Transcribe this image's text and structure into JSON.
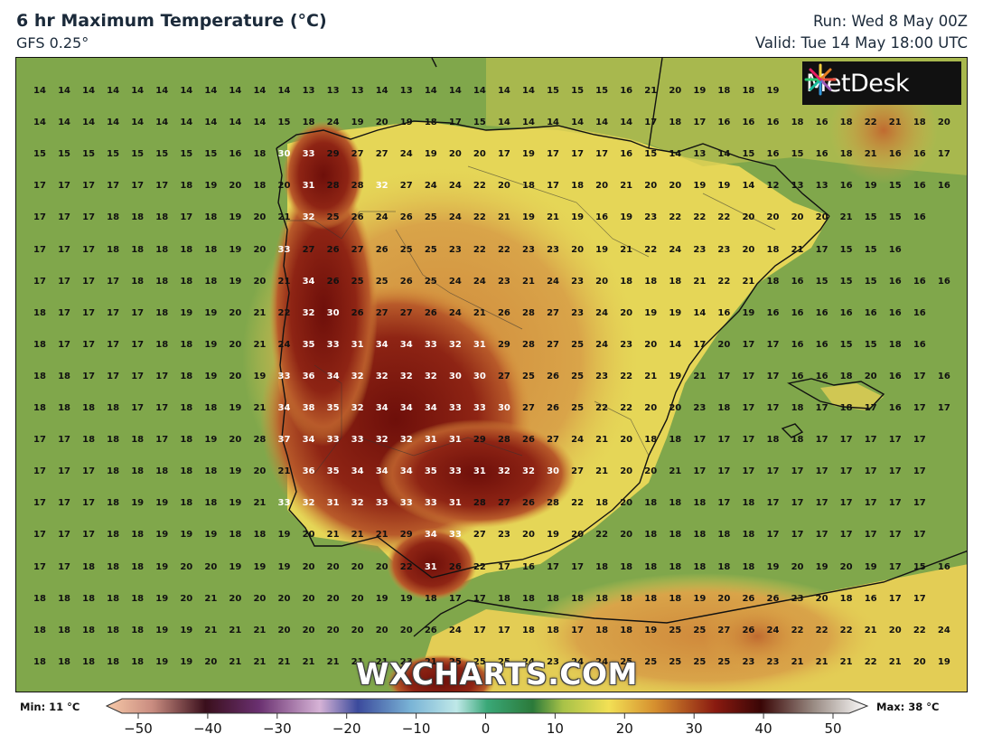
{
  "header": {
    "title": "6 hr Maximum Temperature (°C)",
    "model": "GFS 0.25°",
    "run": "Run: Wed 8 May 00Z",
    "valid": "Valid: Tue 14 May 18:00 UTC"
  },
  "logo": {
    "text": "MetDesk",
    "icon": "metdesk-starburst-icon"
  },
  "watermark": "WXCHARTS.COM",
  "legend": {
    "min_label": "Min: 11 °C",
    "max_label": "Max: 38 °C",
    "ticks": [
      "−50",
      "−40",
      "−30",
      "−20",
      "−10",
      "0",
      "10",
      "20",
      "30",
      "40",
      "50"
    ],
    "tick_values": [
      -50,
      -40,
      -30,
      -20,
      -10,
      0,
      10,
      20,
      30,
      40,
      50
    ]
  },
  "colors": {
    "sea_green": "#7da64a",
    "warm_yellow": "#e6d655",
    "orange": "#d68a3a",
    "hot_red": "#8a1a10",
    "coastline": "#111111"
  },
  "grid": {
    "hot_threshold": 30,
    "rows": [
      [
        14,
        14,
        14,
        14,
        14,
        14,
        14,
        14,
        14,
        14,
        14,
        13,
        13,
        13,
        14,
        13,
        14,
        14,
        14,
        14,
        14,
        15,
        15,
        15,
        16,
        21,
        20,
        19,
        18,
        18,
        19,
        "",
        ""
      ],
      [
        14,
        14,
        14,
        14,
        14,
        14,
        14,
        14,
        14,
        14,
        15,
        18,
        24,
        19,
        20,
        19,
        18,
        17,
        15,
        14,
        14,
        14,
        14,
        14,
        14,
        17,
        18,
        17,
        16,
        16,
        16,
        18,
        16,
        18,
        22,
        21,
        18,
        20
      ],
      [
        15,
        15,
        15,
        15,
        15,
        15,
        15,
        15,
        16,
        18,
        30,
        33,
        29,
        27,
        27,
        24,
        19,
        20,
        20,
        17,
        19,
        17,
        17,
        17,
        16,
        15,
        14,
        13,
        14,
        15,
        16,
        15,
        16,
        18,
        21,
        16,
        16,
        17
      ],
      [
        17,
        17,
        17,
        17,
        17,
        17,
        18,
        19,
        20,
        18,
        20,
        31,
        28,
        28,
        32,
        27,
        24,
        24,
        22,
        20,
        18,
        17,
        18,
        20,
        21,
        20,
        20,
        19,
        19,
        14,
        12,
        13,
        13,
        16,
        19,
        15,
        16,
        16
      ],
      [
        17,
        17,
        17,
        18,
        18,
        18,
        17,
        18,
        19,
        20,
        21,
        32,
        25,
        26,
        24,
        26,
        25,
        24,
        22,
        21,
        19,
        21,
        19,
        16,
        19,
        23,
        22,
        22,
        22,
        20,
        20,
        20,
        20,
        21,
        15,
        15,
        16
      ],
      [
        17,
        17,
        17,
        18,
        18,
        18,
        18,
        18,
        19,
        20,
        33,
        27,
        26,
        27,
        26,
        25,
        25,
        23,
        22,
        22,
        23,
        23,
        20,
        19,
        21,
        22,
        24,
        23,
        23,
        20,
        18,
        21,
        17,
        15,
        15,
        16
      ],
      [
        17,
        17,
        17,
        17,
        18,
        18,
        18,
        18,
        19,
        20,
        21,
        34,
        26,
        25,
        25,
        26,
        25,
        24,
        24,
        23,
        21,
        24,
        23,
        20,
        18,
        18,
        18,
        21,
        22,
        21,
        18,
        16,
        15,
        15,
        15,
        16,
        16,
        16
      ],
      [
        18,
        17,
        17,
        17,
        17,
        18,
        19,
        19,
        20,
        21,
        22,
        32,
        30,
        26,
        27,
        27,
        26,
        24,
        21,
        26,
        28,
        27,
        23,
        24,
        20,
        19,
        19,
        14,
        16,
        19,
        16,
        16,
        16,
        16,
        16,
        16,
        16
      ],
      [
        18,
        17,
        17,
        17,
        17,
        18,
        18,
        19,
        20,
        21,
        24,
        35,
        33,
        31,
        34,
        34,
        33,
        32,
        31,
        29,
        28,
        27,
        25,
        24,
        23,
        20,
        14,
        17,
        20,
        17,
        17,
        16,
        16,
        15,
        15,
        18,
        16
      ],
      [
        18,
        18,
        17,
        17,
        17,
        17,
        18,
        19,
        20,
        19,
        33,
        36,
        34,
        32,
        32,
        32,
        32,
        30,
        30,
        27,
        25,
        26,
        25,
        23,
        22,
        21,
        19,
        21,
        17,
        17,
        17,
        16,
        16,
        18,
        20,
        16,
        17,
        16
      ],
      [
        18,
        18,
        18,
        18,
        17,
        17,
        18,
        18,
        19,
        21,
        34,
        38,
        35,
        32,
        34,
        34,
        34,
        33,
        33,
        30,
        27,
        26,
        25,
        22,
        22,
        20,
        20,
        23,
        18,
        17,
        17,
        18,
        17,
        18,
        17,
        16,
        17,
        17
      ],
      [
        17,
        17,
        18,
        18,
        18,
        17,
        18,
        19,
        20,
        28,
        37,
        34,
        33,
        33,
        32,
        32,
        31,
        31,
        29,
        28,
        26,
        27,
        24,
        21,
        20,
        18,
        18,
        17,
        17,
        17,
        18,
        18,
        17,
        17,
        17,
        17,
        17
      ],
      [
        17,
        17,
        17,
        18,
        18,
        18,
        18,
        18,
        19,
        20,
        21,
        36,
        35,
        34,
        34,
        34,
        35,
        33,
        31,
        32,
        32,
        30,
        27,
        21,
        20,
        20,
        21,
        17,
        17,
        17,
        17,
        17,
        17,
        17,
        17,
        17,
        17
      ],
      [
        17,
        17,
        17,
        18,
        19,
        19,
        18,
        18,
        19,
        21,
        33,
        32,
        31,
        32,
        33,
        33,
        33,
        31,
        28,
        27,
        26,
        28,
        22,
        18,
        20,
        18,
        18,
        18,
        17,
        18,
        17,
        17,
        17,
        17,
        17,
        17,
        17
      ],
      [
        17,
        17,
        17,
        18,
        18,
        19,
        19,
        19,
        18,
        18,
        19,
        20,
        21,
        21,
        21,
        29,
        34,
        33,
        27,
        23,
        20,
        19,
        20,
        22,
        20,
        18,
        18,
        18,
        18,
        18,
        17,
        17,
        17,
        17,
        17,
        17,
        17
      ],
      [
        17,
        17,
        18,
        18,
        18,
        19,
        20,
        20,
        19,
        19,
        19,
        20,
        20,
        20,
        20,
        22,
        31,
        26,
        22,
        17,
        16,
        17,
        17,
        18,
        18,
        18,
        18,
        18,
        18,
        18,
        19,
        20,
        19,
        20,
        19,
        17,
        15,
        16
      ],
      [
        18,
        18,
        18,
        18,
        18,
        19,
        20,
        21,
        20,
        20,
        20,
        20,
        20,
        20,
        19,
        19,
        18,
        17,
        17,
        18,
        18,
        18,
        18,
        18,
        18,
        18,
        18,
        19,
        20,
        26,
        26,
        23,
        20,
        18,
        16,
        17,
        17
      ],
      [
        18,
        18,
        18,
        18,
        18,
        19,
        19,
        21,
        21,
        21,
        20,
        20,
        20,
        20,
        20,
        20,
        26,
        24,
        17,
        17,
        18,
        18,
        17,
        18,
        18,
        19,
        25,
        25,
        27,
        26,
        24,
        22,
        22,
        22,
        21,
        20,
        22,
        24
      ],
      [
        18,
        18,
        18,
        18,
        18,
        19,
        19,
        20,
        21,
        21,
        21,
        21,
        21,
        21,
        21,
        23,
        21,
        25,
        25,
        25,
        24,
        23,
        24,
        24,
        25,
        25,
        25,
        25,
        25,
        23,
        23,
        21,
        21,
        21,
        22,
        21,
        20,
        19,
        21
      ]
    ]
  }
}
